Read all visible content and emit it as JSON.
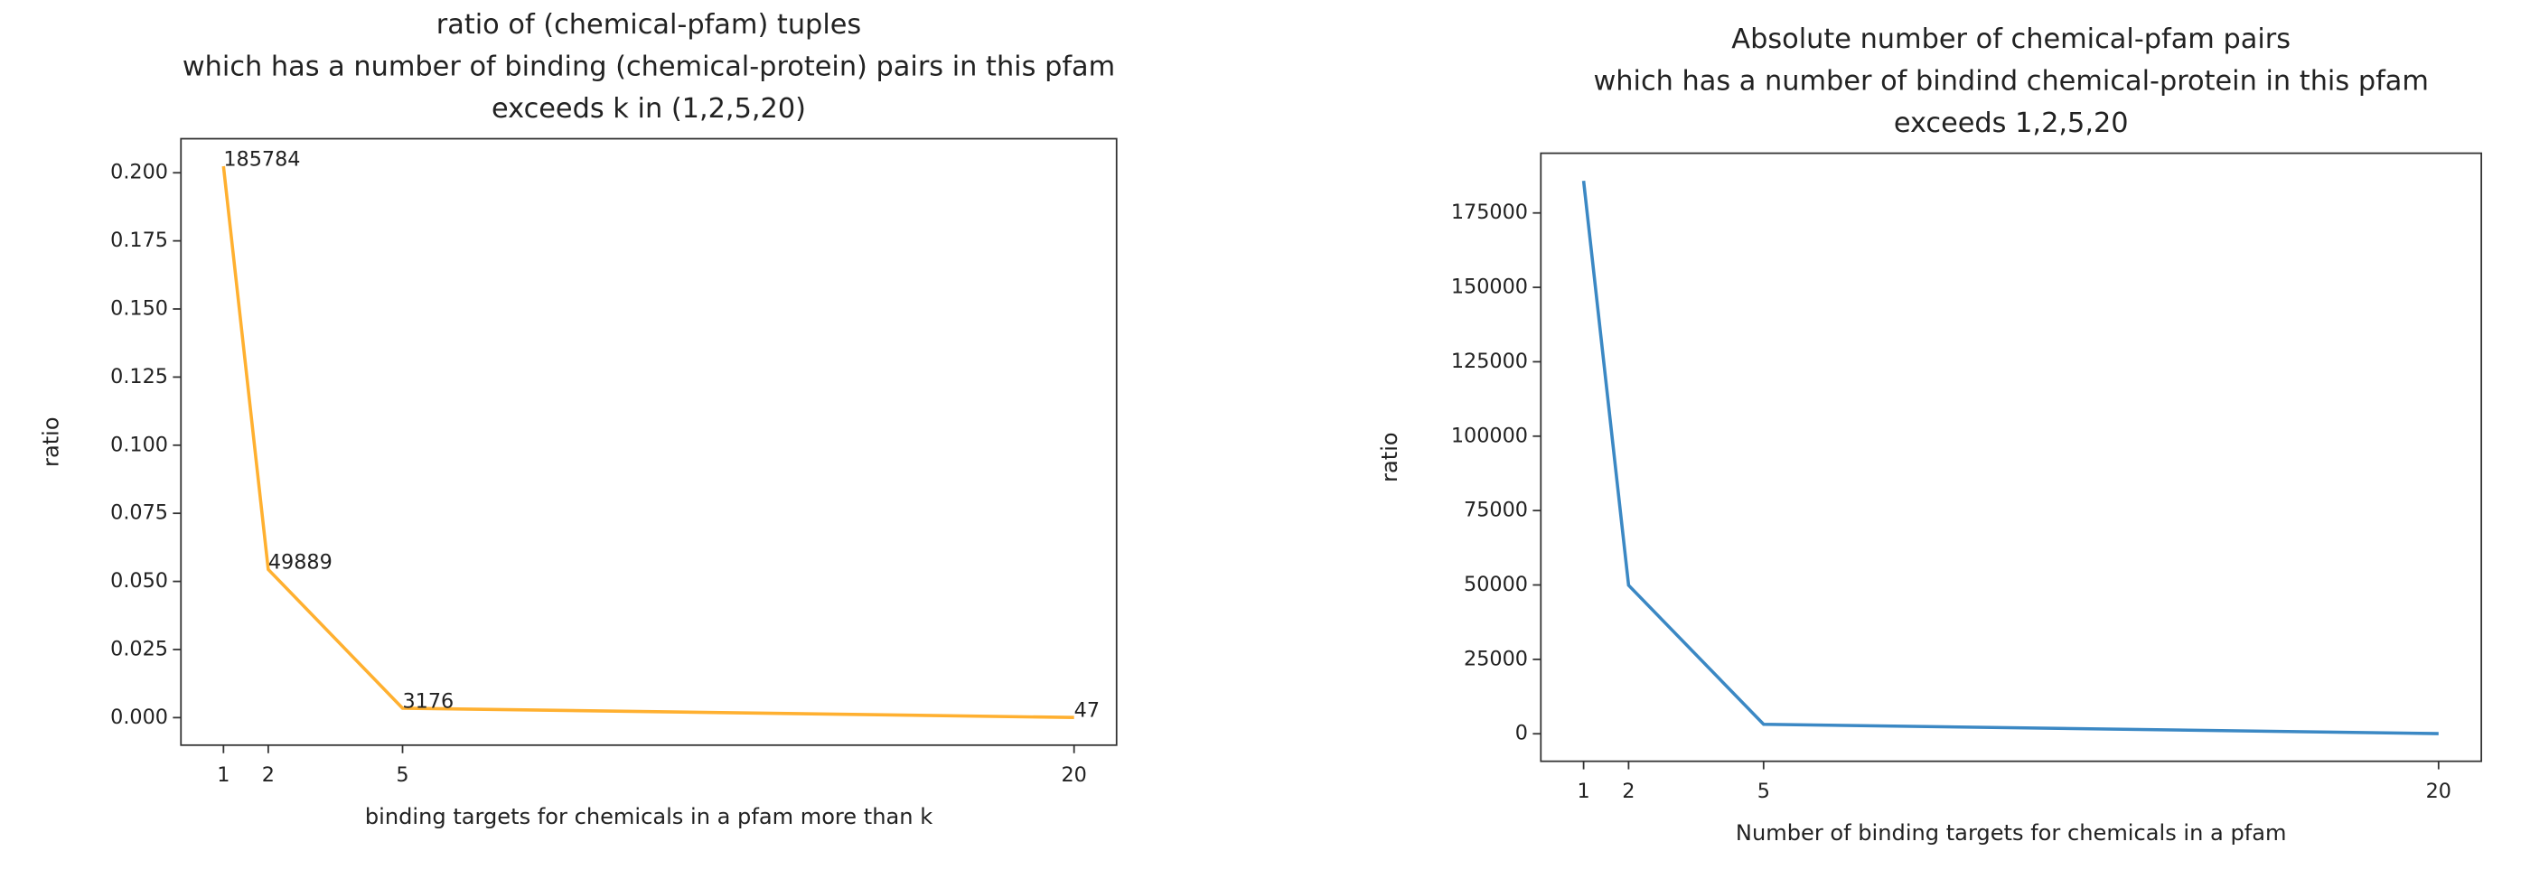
{
  "chart_data": [
    {
      "type": "line",
      "title": [
        "ratio of  (chemical-pfam)  tuples",
        "which has a number of binding (chemical-protein) pairs in this pfam",
        "exceeds k in (1,2,5,20)"
      ],
      "xlabel": "binding targets for  chemicals in a pfam more than k",
      "ylabel": "ratio",
      "x": [
        1,
        2,
        5,
        20
      ],
      "values": [
        0.2024,
        0.0544,
        0.00346,
        5e-05
      ],
      "annotations": [
        "185784",
        "49889",
        "3176",
        "47"
      ],
      "color": "#ffb030",
      "xlim": [
        0.05,
        20.95
      ],
      "xticks": [
        1,
        2,
        5,
        20
      ],
      "ylim": [
        -0.0101,
        0.2125
      ],
      "yticks": [
        {
          "value": 0,
          "label": "0.000"
        },
        0.025,
        {
          "value": 0.05,
          "label": "0.050"
        },
        0.075,
        {
          "value": 0.1,
          "label": "0.100"
        },
        0.125,
        {
          "value": 0.15,
          "label": "0.150"
        },
        0.175,
        {
          "value": 0.2,
          "label": "0.200"
        }
      ]
    },
    {
      "type": "line",
      "title": [
        "Absolute number of  chemical-pfam  pairs",
        "which has a number of bindind chemical-protein in this pfam",
        "exceeds 1,2,5,20"
      ],
      "xlabel": "Number of binding targets for  chemicals in a pfam",
      "ylabel": "ratio",
      "x": [
        1,
        2,
        5,
        20
      ],
      "values": [
        185784,
        49889,
        3176,
        47
      ],
      "color": "#3b88c4",
      "xlim": [
        0.05,
        20.95
      ],
      "xticks": [
        1,
        2,
        5,
        20
      ],
      "ylim": [
        -9240,
        195071
      ],
      "yticks": [
        0,
        25000,
        50000,
        75000,
        100000,
        125000,
        150000,
        175000
      ]
    }
  ]
}
